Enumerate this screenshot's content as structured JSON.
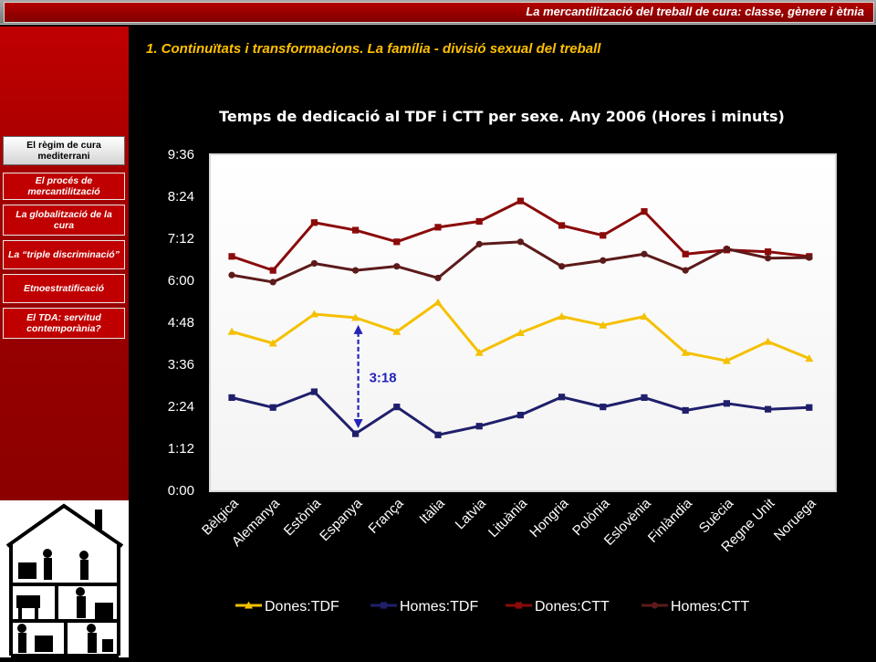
{
  "header": {
    "title": "La mercantilització del treball de cura: classe, gènere i ètnia"
  },
  "sidebar": {
    "items": [
      {
        "label": "El règim de cura mediterrani",
        "active": true
      },
      {
        "label": "El procés de mercantilització",
        "active": false
      },
      {
        "label": "La globalització de la cura",
        "active": false
      },
      {
        "label": "La “triple discriminació”",
        "active": false
      },
      {
        "label": "Etnoestratificació",
        "active": false
      },
      {
        "label": "El TDA: servitud contemporània?",
        "active": false
      }
    ]
  },
  "section_title": "1.  Continuïtats i transformacions. La família - divisió sexual del treball",
  "chart_data": {
    "type": "line",
    "title": "Temps de dedicació al TDF i CTT per sexe. Any 2006 (Hores i minuts)",
    "categories": [
      "Bèlgica",
      "Alemanya",
      "Estònia",
      "Espanya",
      "França",
      "Itàlia",
      "Latvia",
      "Lituània",
      "Hongria",
      "Polònia",
      "Eslovènia",
      "Finlàndia",
      "Suècia",
      "Regne Unit",
      "Noruega"
    ],
    "y_unit": "minutes",
    "ylim": [
      0,
      576
    ],
    "yticks": [
      0,
      72,
      144,
      216,
      288,
      360,
      432,
      504,
      576
    ],
    "ytick_labels": [
      "0:00",
      "1:12",
      "2:24",
      "3:36",
      "4:48",
      "6:00",
      "7:12",
      "8:24",
      "9:36"
    ],
    "grid": false,
    "legend_position": "bottom",
    "series": [
      {
        "name": "Dones:TDF",
        "color": "#f5c000",
        "marker": "triangle",
        "values": [
          272,
          252,
          302,
          296,
          272,
          322,
          236,
          270,
          298,
          283,
          298,
          236,
          222,
          255,
          226
        ]
      },
      {
        "name": "Homes:TDF",
        "color": "#1f1f6b",
        "marker": "square",
        "values": [
          159,
          142,
          169,
          97,
          143,
          95,
          110,
          129,
          160,
          143,
          159,
          137,
          149,
          139,
          142
        ]
      },
      {
        "name": "Dones:CTT",
        "color": "#8b0a0a",
        "marker": "square",
        "values": [
          401,
          377,
          459,
          446,
          426,
          451,
          461,
          496,
          454,
          437,
          478,
          405,
          412,
          409,
          401
        ]
      },
      {
        "name": "Homes:CTT",
        "color": "#5c1a1a",
        "marker": "circle",
        "values": [
          369,
          357,
          389,
          377,
          384,
          364,
          422,
          426,
          384,
          394,
          405,
          377,
          414,
          398,
          399
        ]
      }
    ],
    "annotation": {
      "text": "3:18",
      "category": "Espanya",
      "from": 97,
      "to": 296,
      "color": "#2323b8"
    }
  }
}
